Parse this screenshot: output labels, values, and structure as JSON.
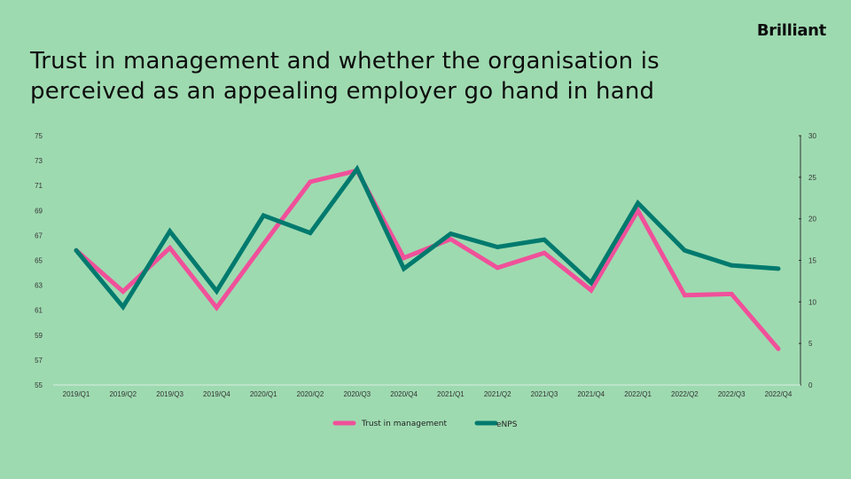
{
  "brand": {
    "logo_text": "Brilliant"
  },
  "header": {
    "title_line1": "Trust in management and whether the organisation is",
    "title_line2": "perceived as an appealing employer go hand in hand"
  },
  "colors": {
    "background": "#9EDAB0",
    "trust": "#F0509A",
    "enps": "#007A6E",
    "axis": "#333333",
    "baseline": "#D8EEDF"
  },
  "legend": [
    {
      "label": "Trust in management",
      "color": "#F0509A"
    },
    {
      "label": "eNPS",
      "color": "#007A6E"
    }
  ],
  "chart_data": {
    "type": "line",
    "title": "Trust in management and whether the organisation is perceived as an appealing employer go hand in hand",
    "xlabel": "",
    "ylabel": "",
    "categories": [
      "2019/Q1",
      "2019/Q2",
      "2019/Q3",
      "2019/Q4",
      "2020/Q1",
      "2020/Q2",
      "2020/Q3",
      "2020/Q4",
      "2021/Q1",
      "2021/Q2",
      "2021/Q3",
      "2021/Q4",
      "2022/Q1",
      "2022/Q2",
      "2022/Q3",
      "2022/Q4"
    ],
    "series": [
      {
        "name": "Trust in management",
        "axis": "left",
        "color": "#F0509A",
        "values": [
          65.8,
          62.5,
          66.0,
          61.2,
          66.3,
          71.3,
          72.2,
          65.2,
          66.7,
          64.4,
          65.6,
          62.6,
          69.0,
          62.2,
          62.3,
          57.9
        ]
      },
      {
        "name": "eNPS",
        "axis": "right",
        "color": "#007A6E",
        "values": [
          16.2,
          9.4,
          18.5,
          11.3,
          20.4,
          18.3,
          26.0,
          14.0,
          18.2,
          16.6,
          17.5,
          12.3,
          21.9,
          16.2,
          14.4,
          14.0
        ]
      }
    ],
    "ylim_left": [
      55,
      75
    ],
    "yticks_left": [
      55,
      57,
      59,
      61,
      63,
      65,
      67,
      69,
      71,
      73,
      75
    ],
    "ylim_right": [
      0,
      30
    ],
    "yticks_right": [
      0,
      5,
      10,
      15,
      20,
      25,
      30
    ],
    "grid": false,
    "legend_position": "bottom"
  }
}
